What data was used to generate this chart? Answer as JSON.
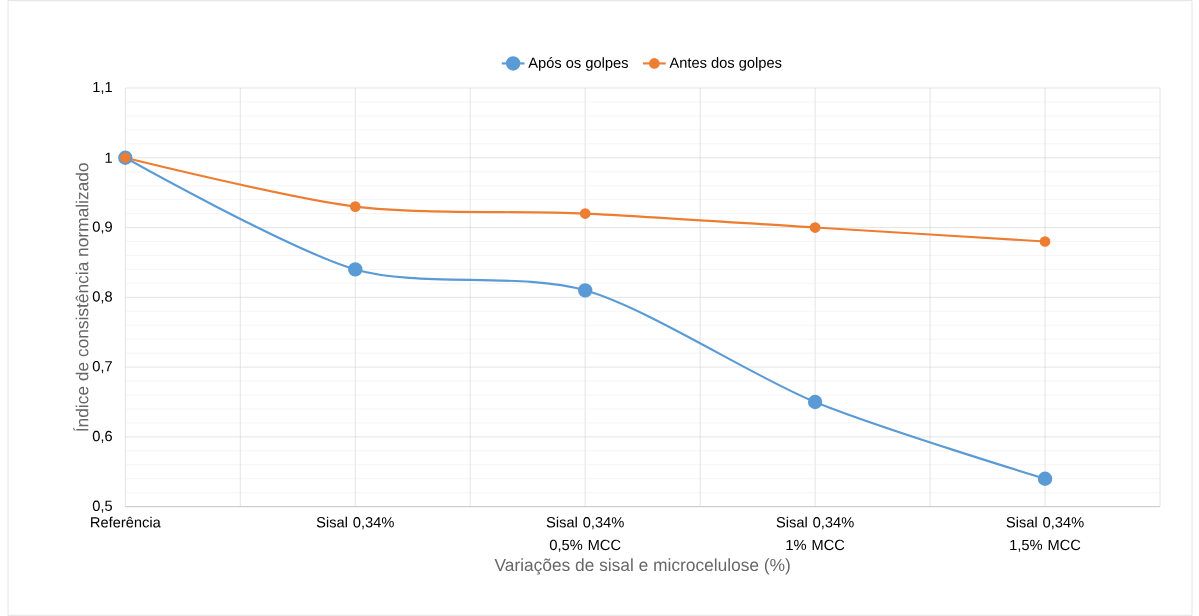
{
  "chart_data": {
    "type": "line",
    "xlabel": "Variações de sisal e microcelulose (%)",
    "ylabel": "Índice de consistência normalizado",
    "categories": [
      "Referência",
      "Sisal 0,34%",
      "Sisal 0,34% 0,5% MCC",
      "Sisal 0,34% 1% MCC",
      "Sisal 0,34% 1,5% MCC"
    ],
    "series": [
      {
        "name": "Após os golpes",
        "color": "#5b9bd5",
        "values": [
          1.0,
          0.84,
          0.81,
          0.65,
          0.54
        ]
      },
      {
        "name": "Antes dos golpes",
        "color": "#ed7d31",
        "values": [
          1.0,
          0.93,
          0.92,
          0.9,
          0.88
        ]
      }
    ],
    "ylim": [
      0.5,
      1.1
    ],
    "yticks": [
      {
        "value": 0.5,
        "label": "0,5"
      },
      {
        "value": 0.6,
        "label": "0,6"
      },
      {
        "value": 0.7,
        "label": "0,7"
      },
      {
        "value": 0.8,
        "label": "0,8"
      },
      {
        "value": 0.9,
        "label": "0,9"
      },
      {
        "value": 1,
        "label": "1"
      },
      {
        "value": 1.1,
        "label": "1,1"
      }
    ],
    "grid": true,
    "legend": "top",
    "marker": "circle",
    "line_style": "solid"
  }
}
